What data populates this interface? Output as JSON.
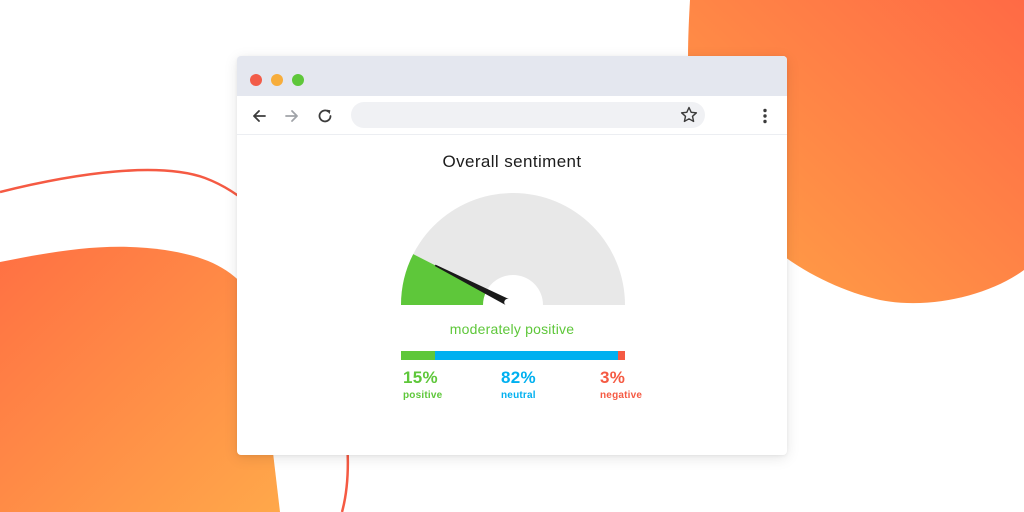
{
  "colors": {
    "positive": "#5ec73a",
    "neutral": "#00b0f0",
    "negative": "#f55a43",
    "gauge_track": "#e8e8e8",
    "needle": "#1a1a1a",
    "window_chrome": "#e4e7ef",
    "background_blob_orange": "#ff8a3d"
  },
  "browser": {
    "traffic_lights": [
      "close",
      "minimize",
      "zoom"
    ],
    "toolbar": {
      "icons": [
        "back-arrow-icon",
        "forward-arrow-icon",
        "reload-icon",
        "star-icon",
        "more-vert-icon"
      ]
    },
    "address_bar": {
      "value": ""
    }
  },
  "sentiment": {
    "title": "Overall sentiment",
    "gauge": {
      "positive_fill_fraction": 0.15,
      "needle_fraction": 0.15
    },
    "verdict": "moderately positive",
    "breakdown": [
      {
        "key": "positive",
        "percent_value": 15,
        "percent": "15%",
        "label": "positive"
      },
      {
        "key": "neutral",
        "percent_value": 82,
        "percent": "82%",
        "label": "neutral"
      },
      {
        "key": "negative",
        "percent_value": 3,
        "percent": "3%",
        "label": "negative"
      }
    ]
  }
}
